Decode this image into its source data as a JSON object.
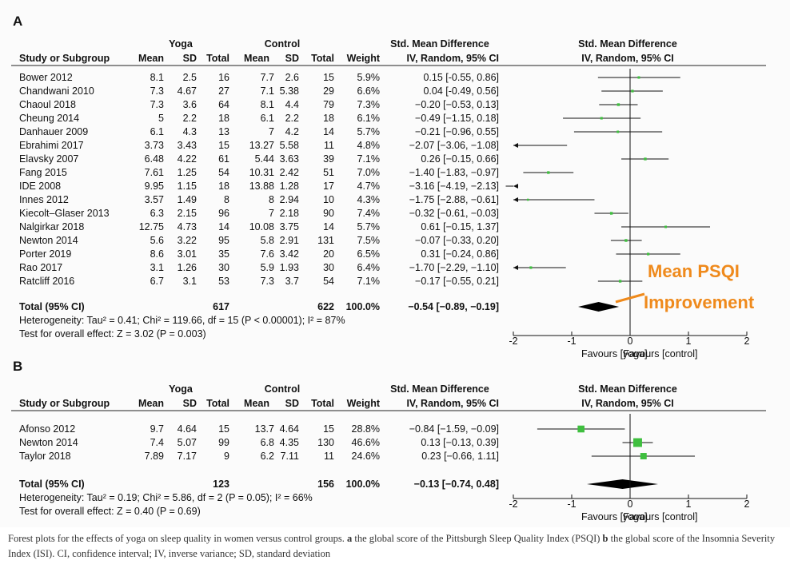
{
  "chart_data": [
    {
      "type": "forest",
      "panel_label": "A",
      "group1": "Yoga",
      "group2": "Control",
      "columns": [
        "Study or Subgroup",
        "Mean",
        "SD",
        "Total",
        "Mean",
        "SD",
        "Total",
        "Weight",
        "IV, Random, 95% CI"
      ],
      "effect_header": "Std. Mean Difference",
      "plot_header": "Std. Mean Difference",
      "plot_subheader": "IV, Random, 95% CI",
      "studies": [
        {
          "name": "Bower 2012",
          "y_mean": "8.1",
          "y_sd": "2.5",
          "y_n": "16",
          "c_mean": "7.7",
          "c_sd": "2.6",
          "c_n": "15",
          "weight": "5.9%",
          "ci_text": "0.15 [-0.55, 0.86]",
          "est": 0.15,
          "lo": -0.55,
          "hi": 0.86
        },
        {
          "name": "Chandwani 2010",
          "y_mean": "7.3",
          "y_sd": "4.67",
          "y_n": "27",
          "c_mean": "7.1",
          "c_sd": "5.38",
          "c_n": "29",
          "weight": "6.6%",
          "ci_text": "0.04 [-0.49, 0.56]",
          "est": 0.04,
          "lo": -0.49,
          "hi": 0.56
        },
        {
          "name": "Chaoul 2018",
          "y_mean": "7.3",
          "y_sd": "3.6",
          "y_n": "64",
          "c_mean": "8.1",
          "c_sd": "4.4",
          "c_n": "79",
          "weight": "7.3%",
          "ci_text": "−0.20 [−0.53, 0.13]",
          "est": -0.2,
          "lo": -0.53,
          "hi": 0.13
        },
        {
          "name": "Cheung 2014",
          "y_mean": "5",
          "y_sd": "2.2",
          "y_n": "18",
          "c_mean": "6.1",
          "c_sd": "2.2",
          "c_n": "18",
          "weight": "6.1%",
          "ci_text": "−0.49 [−1.15, 0.18]",
          "est": -0.49,
          "lo": -1.15,
          "hi": 0.18
        },
        {
          "name": "Danhauer 2009",
          "y_mean": "6.1",
          "y_sd": "4.3",
          "y_n": "13",
          "c_mean": "7",
          "c_sd": "4.2",
          "c_n": "14",
          "weight": "5.7%",
          "ci_text": "−0.21 [−0.96, 0.55]",
          "est": -0.21,
          "lo": -0.96,
          "hi": 0.55
        },
        {
          "name": "Ebrahimi 2017",
          "y_mean": "3.73",
          "y_sd": "3.43",
          "y_n": "15",
          "c_mean": "13.27",
          "c_sd": "5.58",
          "c_n": "11",
          "weight": "4.8%",
          "ci_text": "−2.07 [−3.06, −1.08]",
          "est": -2.07,
          "lo": -3.06,
          "hi": -1.08
        },
        {
          "name": "Elavsky 2007",
          "y_mean": "6.48",
          "y_sd": "4.22",
          "y_n": "61",
          "c_mean": "5.44",
          "c_sd": "3.63",
          "c_n": "39",
          "weight": "7.1%",
          "ci_text": "0.26 [−0.15, 0.66]",
          "est": 0.26,
          "lo": -0.15,
          "hi": 0.66
        },
        {
          "name": "Fang 2015",
          "y_mean": "7.61",
          "y_sd": "1.25",
          "y_n": "54",
          "c_mean": "10.31",
          "c_sd": "2.42",
          "c_n": "51",
          "weight": "7.0%",
          "ci_text": "−1.40 [−1.83, −0.97]",
          "est": -1.4,
          "lo": -1.83,
          "hi": -0.97
        },
        {
          "name": "IDE 2008",
          "y_mean": "9.95",
          "y_sd": "1.15",
          "y_n": "18",
          "c_mean": "13.88",
          "c_sd": "1.28",
          "c_n": "17",
          "weight": "4.7%",
          "ci_text": "−3.16 [−4.19, −2.13]",
          "est": -3.16,
          "lo": -4.19,
          "hi": -2.13
        },
        {
          "name": "Innes 2012",
          "y_mean": "3.57",
          "y_sd": "1.49",
          "y_n": "8",
          "c_mean": "8",
          "c_sd": "2.94",
          "c_n": "10",
          "weight": "4.3%",
          "ci_text": "−1.75 [−2.88, −0.61]",
          "est": -1.75,
          "lo": -2.88,
          "hi": -0.61
        },
        {
          "name": "Kiecolt–Glaser 2013",
          "y_mean": "6.3",
          "y_sd": "2.15",
          "y_n": "96",
          "c_mean": "7",
          "c_sd": "2.18",
          "c_n": "90",
          "weight": "7.4%",
          "ci_text": "−0.32 [−0.61, −0.03]",
          "est": -0.32,
          "lo": -0.61,
          "hi": -0.03
        },
        {
          "name": "Nalgirkar 2018",
          "y_mean": "12.75",
          "y_sd": "4.73",
          "y_n": "14",
          "c_mean": "10.08",
          "c_sd": "3.75",
          "c_n": "14",
          "weight": "5.7%",
          "ci_text": "0.61 [−0.15, 1.37]",
          "est": 0.61,
          "lo": -0.15,
          "hi": 1.37
        },
        {
          "name": "Newton 2014",
          "y_mean": "5.6",
          "y_sd": "3.22",
          "y_n": "95",
          "c_mean": "5.8",
          "c_sd": "2.91",
          "c_n": "131",
          "weight": "7.5%",
          "ci_text": "−0.07 [−0.33, 0.20]",
          "est": -0.07,
          "lo": -0.33,
          "hi": 0.2
        },
        {
          "name": "Porter 2019",
          "y_mean": "8.6",
          "y_sd": "3.01",
          "y_n": "35",
          "c_mean": "7.6",
          "c_sd": "3.42",
          "c_n": "20",
          "weight": "6.5%",
          "ci_text": "0.31 [−0.24, 0.86]",
          "est": 0.31,
          "lo": -0.24,
          "hi": 0.86
        },
        {
          "name": "Rao 2017",
          "y_mean": "3.1",
          "y_sd": "1.26",
          "y_n": "30",
          "c_mean": "5.9",
          "c_sd": "1.93",
          "c_n": "30",
          "weight": "6.4%",
          "ci_text": "−1.70 [−2.29, −1.10]",
          "est": -1.7,
          "lo": -2.29,
          "hi": -1.1
        },
        {
          "name": "Ratcliff 2016",
          "y_mean": "6.7",
          "y_sd": "3.1",
          "y_n": "53",
          "c_mean": "7.3",
          "c_sd": "3.7",
          "c_n": "54",
          "weight": "7.1%",
          "ci_text": "−0.17 [−0.55, 0.21]",
          "est": -0.17,
          "lo": -0.55,
          "hi": 0.21
        }
      ],
      "total": {
        "label": "Total (95% CI)",
        "y_n": "617",
        "c_n": "622",
        "weight": "100.0%",
        "ci_text": "−0.54 [−0.89, −0.19]",
        "est": -0.54,
        "lo": -0.89,
        "hi": -0.19
      },
      "heterogeneity": "Heterogeneity: Tau² = 0.41; Chi² = 119.66, df = 15 (P < 0.00001); I² = 87%",
      "overall_test": "Test for overall effect: Z = 3.02 (P = 0.003)",
      "xlim": [
        -2,
        2
      ],
      "ticks": [
        "-2",
        "-1",
        "0",
        "1",
        "2"
      ],
      "favours_left": "Favours [yoga]",
      "favours_right": "Favours [control]",
      "annotation": [
        "Mean PSQI",
        "Improvement"
      ]
    },
    {
      "type": "forest",
      "panel_label": "B",
      "group1": "Yoga",
      "group2": "Control",
      "columns": [
        "Study or Subgroup",
        "Mean",
        "SD",
        "Total",
        "Mean",
        "SD",
        "Total",
        "Weight",
        "IV, Random, 95% CI"
      ],
      "effect_header": "Std. Mean Difference",
      "plot_header": "Std. Mean Difference",
      "plot_subheader": "IV, Random, 95% CI",
      "studies": [
        {
          "name": "Afonso 2012",
          "y_mean": "9.7",
          "y_sd": "4.64",
          "y_n": "15",
          "c_mean": "13.7",
          "c_sd": "4.64",
          "c_n": "15",
          "weight": "28.8%",
          "ci_text": "−0.84 [−1.59, −0.09]",
          "est": -0.84,
          "lo": -1.59,
          "hi": -0.09
        },
        {
          "name": "Newton 2014",
          "y_mean": "7.4",
          "y_sd": "5.07",
          "y_n": "99",
          "c_mean": "6.8",
          "c_sd": "4.35",
          "c_n": "130",
          "weight": "46.6%",
          "ci_text": "0.13 [−0.13, 0.39]",
          "est": 0.13,
          "lo": -0.13,
          "hi": 0.39
        },
        {
          "name": "Taylor 2018",
          "y_mean": "7.89",
          "y_sd": "7.17",
          "y_n": "9",
          "c_mean": "6.2",
          "c_sd": "7.11",
          "c_n": "11",
          "weight": "24.6%",
          "ci_text": "0.23 [−0.66, 1.11]",
          "est": 0.23,
          "lo": -0.66,
          "hi": 1.11
        }
      ],
      "total": {
        "label": "Total (95% CI)",
        "y_n": "123",
        "c_n": "156",
        "weight": "100.0%",
        "ci_text": "−0.13 [−0.74, 0.48]",
        "est": -0.13,
        "lo": -0.74,
        "hi": 0.48
      },
      "heterogeneity": "Heterogeneity: Tau² = 0.19; Chi² = 5.86, df = 2 (P = 0.05); I² = 66%",
      "overall_test": "Test for overall effect: Z = 0.40 (P = 0.69)",
      "xlim": [
        -2,
        2
      ],
      "ticks": [
        "-2",
        "-1",
        "0",
        "1",
        "2"
      ],
      "favours_left": "Favours [yoga]",
      "favours_right": "Favours [control]"
    }
  ],
  "caption": {
    "lead": "Forest plots for the effects of yoga on sleep quality in women versus control groups. ",
    "a_label": "a",
    "a_text": " the global score of the Pittsburgh Sleep Quality Index (PSQI) ",
    "b_label": "b",
    "b_text": " the global score of the Insomnia Severity Index (ISI). CI, confidence interval; IV, inverse variance; SD, standard deviation"
  },
  "colors": {
    "marker": "#3fbf3f",
    "text": "#111111",
    "annotation": "#ef8a1c"
  }
}
